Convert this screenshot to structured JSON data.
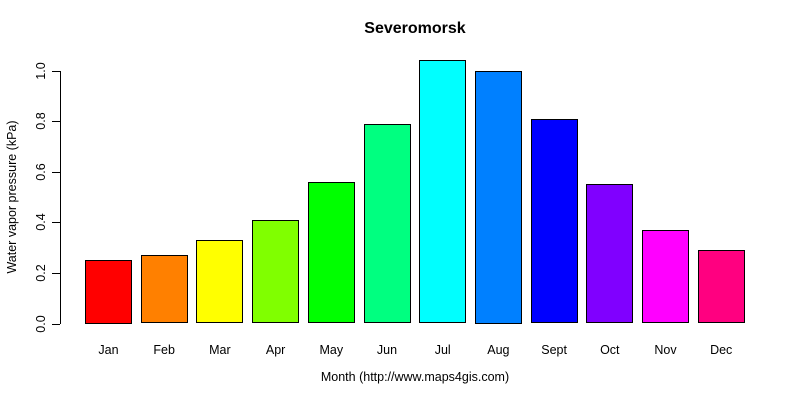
{
  "chart_data": {
    "type": "bar",
    "title": "Severomorsk",
    "xlabel": "Month (http://www.maps4gis.com)",
    "ylabel": "Water vapor pressure (kPa)",
    "categories": [
      "Jan",
      "Feb",
      "Mar",
      "Apr",
      "May",
      "Jun",
      "Jul",
      "Aug",
      "Sept",
      "Oct",
      "Nov",
      "Dec"
    ],
    "values": [
      0.25,
      0.27,
      0.33,
      0.41,
      0.56,
      0.79,
      1.04,
      1.0,
      0.81,
      0.55,
      0.37,
      0.29
    ],
    "bar_colors": [
      "#FF0000",
      "#FF8000",
      "#FFFF00",
      "#80FF00",
      "#00FF00",
      "#00FF80",
      "#00FFFF",
      "#0080FF",
      "#0000FF",
      "#8000FF",
      "#FF00FF",
      "#FF0080"
    ],
    "bar_border_color": "#000000",
    "axis_color": "#000000",
    "background_color": "#FFFFFF",
    "ytick_labels": [
      "0.0",
      "0.2",
      "0.4",
      "0.6",
      "0.8",
      "1.0"
    ],
    "ylim": [
      0.0,
      1.0
    ],
    "grid": false,
    "legend": false
  }
}
